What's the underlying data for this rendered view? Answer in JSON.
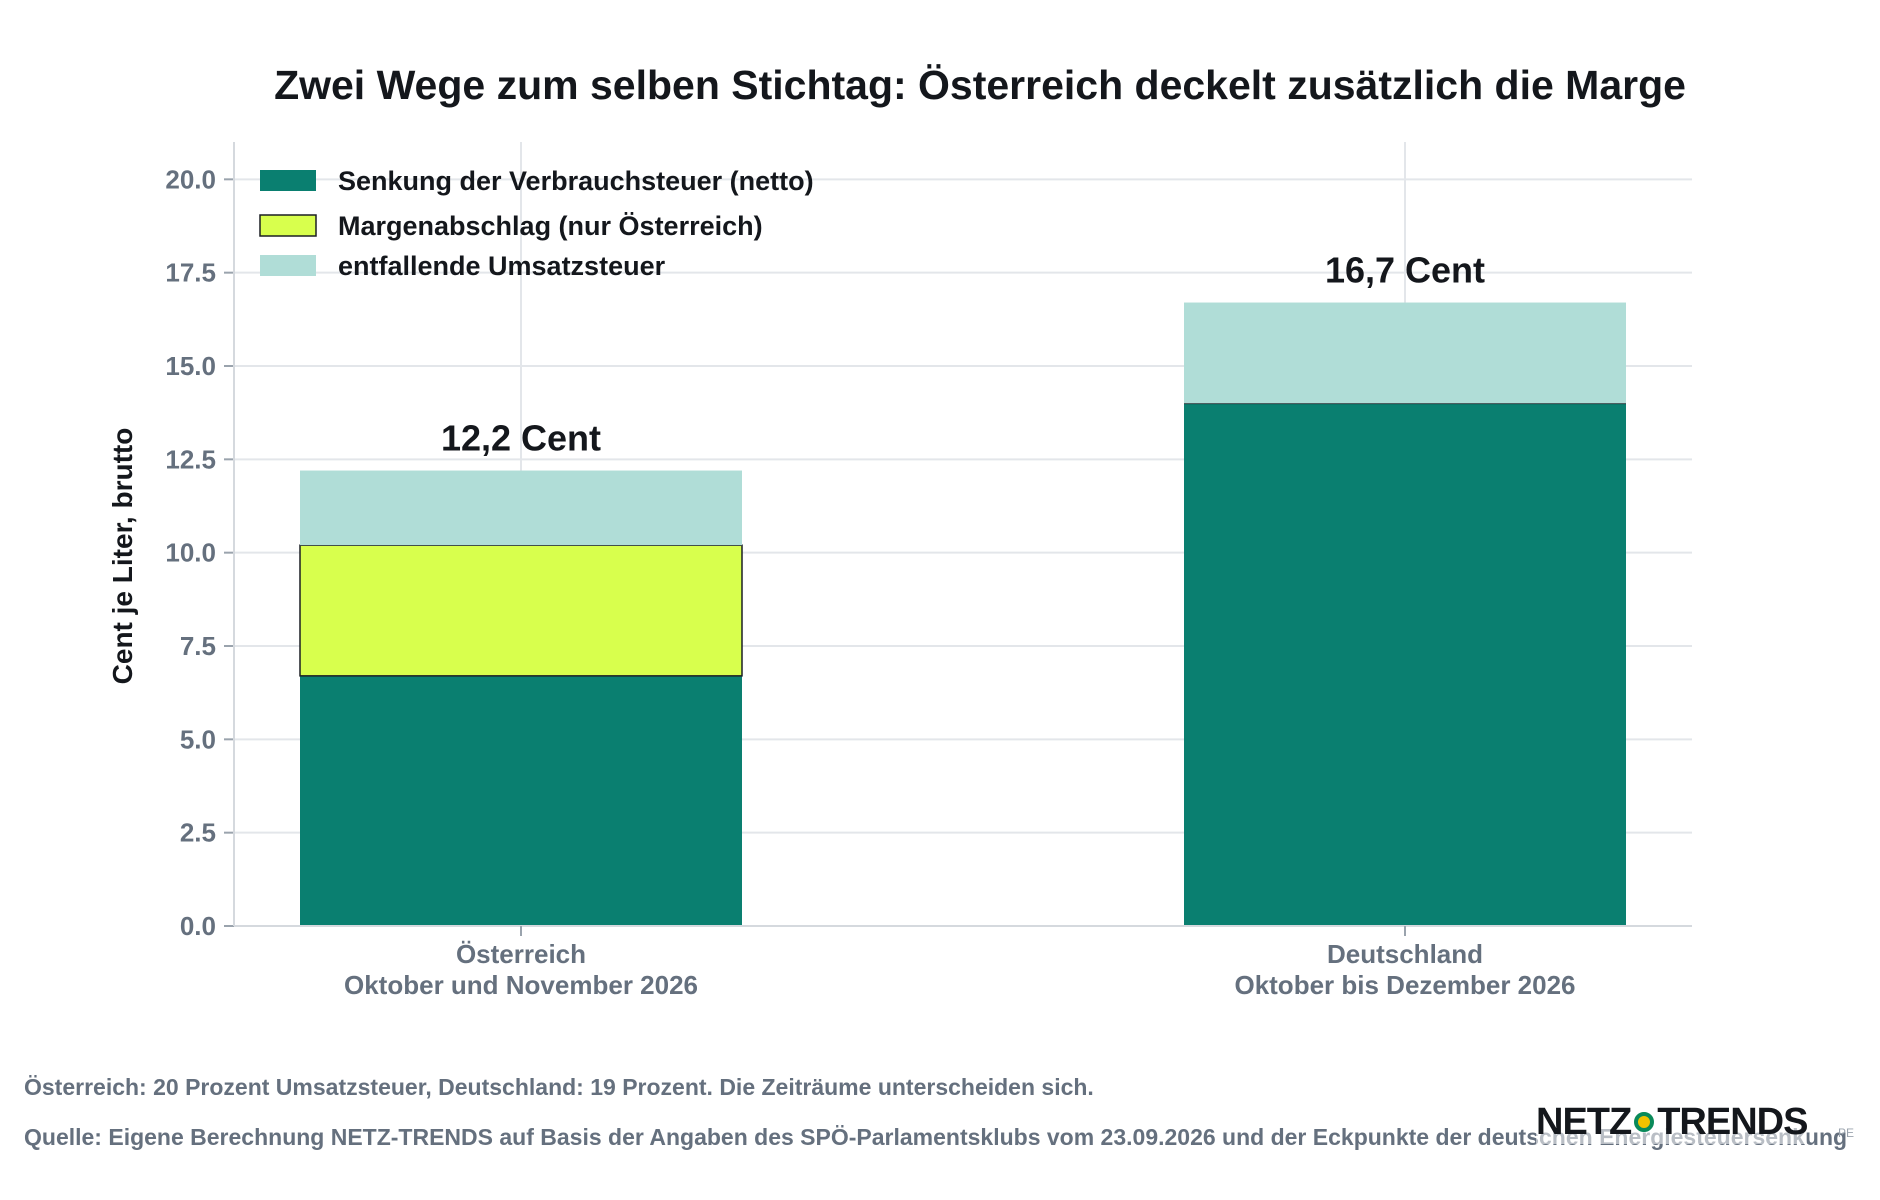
{
  "chart_data": {
    "type": "bar",
    "stacked": true,
    "title": "Zwei Wege zum selben Stichtag: Österreich deckelt zusätzlich die Marge",
    "ylabel": "Cent je Liter, brutto",
    "xlabel": "",
    "ylim": [
      0,
      21
    ],
    "yticks": [
      "0.0",
      "2.5",
      "5.0",
      "7.5",
      "10.0",
      "12.5",
      "15.0",
      "17.5",
      "20.0"
    ],
    "categories": [
      [
        "Österreich",
        "Oktober und November 2026"
      ],
      [
        "Deutschland",
        "Oktober bis Dezember 2026"
      ]
    ],
    "series": [
      {
        "name": "Senkung der Verbrauchsteuer (netto)",
        "values": [
          6.7,
          14.0
        ],
        "color": "#0a7f70"
      },
      {
        "name": "Margenabschlag (nur Österreich)",
        "values": [
          3.5,
          0
        ],
        "color": "#d8ff4d"
      },
      {
        "name": "entfallende Umsatzsteuer",
        "values": [
          2.0,
          2.7
        ],
        "color": "#b0ddd7"
      }
    ],
    "totals": [
      "12,2 Cent",
      "16,7 Cent"
    ],
    "grid": true,
    "legend_position": "top-left"
  },
  "note": "Österreich: 20 Prozent Umsatzsteuer, Deutschland: 19 Prozent. Die Zeiträume unterscheiden sich.",
  "source": "Quelle: Eigene Berechnung NETZ-TRENDS auf Basis der Angaben des SPÖ-Parlamentsklubs vom 23.09.2026 und der Eckpunkte der deutschen Energiesteuersenkung",
  "logo": {
    "left": "NETZ",
    "right": "TRENDS",
    "sub": "PE"
  }
}
